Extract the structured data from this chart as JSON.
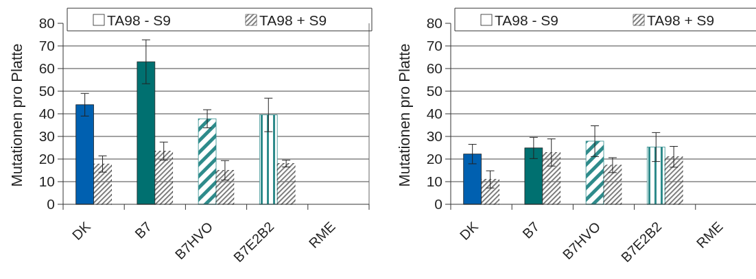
{
  "chart_data": [
    {
      "type": "bar",
      "ylabel": "Mutationen pro Platte",
      "categories": [
        "DK",
        "B7",
        "B7HVO",
        "B7E2B2",
        "RME"
      ],
      "ylim": [
        0,
        80
      ],
      "yticks": [
        0,
        10,
        20,
        30,
        40,
        50,
        60,
        70,
        80
      ],
      "grid": "y",
      "legend": "top",
      "series": [
        {
          "name": "TA98 - S9",
          "color": "#ffffff",
          "colors": [
            "#0060b0",
            "#007070",
            "#2e8b8b",
            "#2e8b8b",
            null
          ],
          "values": [
            44,
            63,
            37.8,
            39.5,
            null
          ],
          "errors": [
            5,
            9.7,
            4,
            7.4,
            null
          ]
        },
        {
          "name": "TA98 + S9",
          "color": "#707070",
          "values": [
            17.8,
            23.5,
            15,
            18,
            null
          ],
          "errors": [
            3.6,
            4,
            4.3,
            1.5,
            null
          ]
        }
      ]
    },
    {
      "type": "bar",
      "ylabel": "Mutationen pro Platte",
      "categories": [
        "DK",
        "B7",
        "B7HVO",
        "B7E2B2",
        "RME"
      ],
      "ylim": [
        0,
        80
      ],
      "yticks": [
        0,
        10,
        20,
        30,
        40,
        50,
        60,
        70,
        80
      ],
      "grid": "y",
      "legend": "top",
      "series": [
        {
          "name": "TA98 - S9",
          "color": "#ffffff",
          "colors": [
            "#0060b0",
            "#007070",
            "#2e8b8b",
            "#2e8b8b",
            null
          ],
          "values": [
            22.2,
            24.9,
            27.9,
            25.3,
            null
          ],
          "errors": [
            4.3,
            4.7,
            6.8,
            6.4,
            null
          ]
        },
        {
          "name": "TA98 + S9",
          "color": "#707070",
          "values": [
            11,
            22.9,
            17.3,
            21,
            null
          ],
          "errors": [
            3.8,
            6,
            3.3,
            4.6,
            null
          ]
        }
      ]
    }
  ]
}
